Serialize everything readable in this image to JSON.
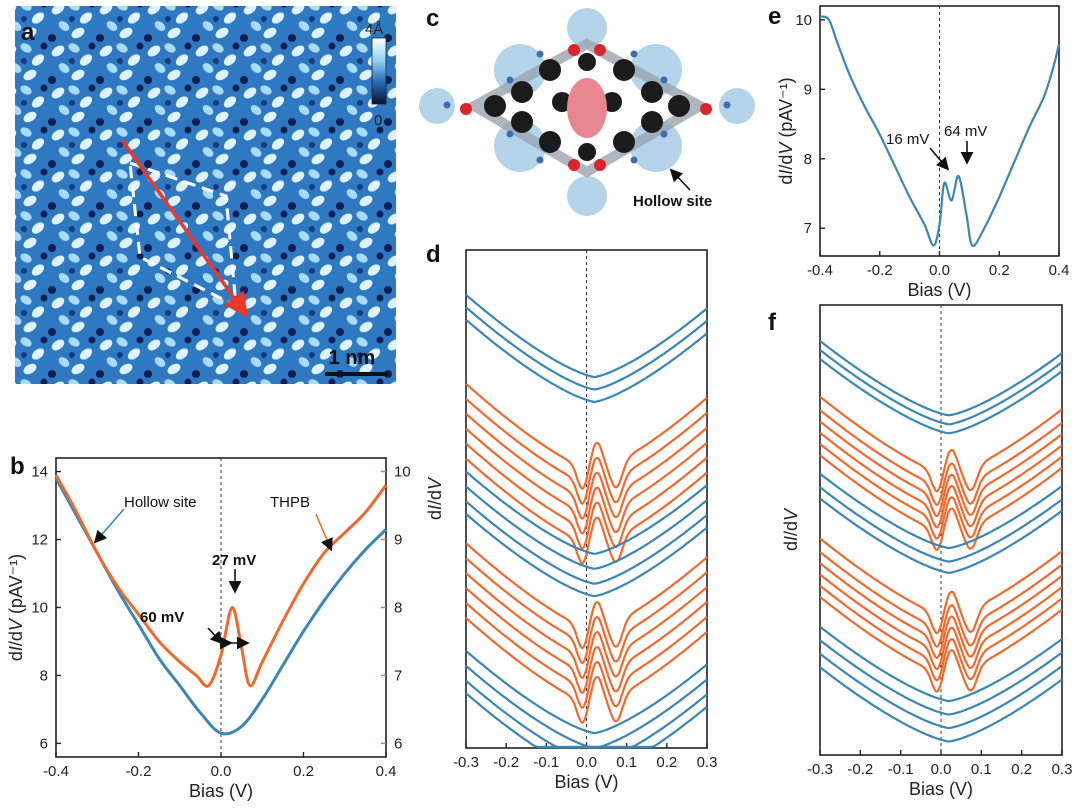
{
  "colors": {
    "hollow": "#3a86b4",
    "thpb": "#ef6a2f",
    "axis": "#222222",
    "stm_dark": "#0b1030",
    "stm_mid": "#2d6fb6",
    "stm_light": "#e4f4ff"
  },
  "panels": {
    "a": "a",
    "b": "b",
    "c": "c",
    "d": "d",
    "e": "e",
    "f": "f"
  },
  "panel_a": {
    "colorbar_max": "4Å",
    "colorbar_min": "0",
    "scale_label": "1 nm"
  },
  "panel_c": {
    "label": "Hollow site"
  },
  "chart_data": [
    {
      "panel": "b",
      "type": "line",
      "xlabel": "Bias (V)",
      "ylabel": "dI/dV (pAV⁻¹)",
      "xlim": [
        -0.4,
        0.4
      ],
      "ylim": [
        5.6,
        14.4
      ],
      "y2lim": [
        5.8,
        10.2
      ],
      "xticks": [
        "-0.4",
        "-0.2",
        "0.0",
        "0.2",
        "0.4"
      ],
      "yticks": [
        "6",
        "8",
        "10",
        "12",
        "14"
      ],
      "y2ticks": [
        "6",
        "7",
        "8",
        "9",
        "10"
      ],
      "series": [
        {
          "name": "Hollow site",
          "axis": "left",
          "x": [
            -0.4,
            -0.35,
            -0.3,
            -0.25,
            -0.2,
            -0.15,
            -0.1,
            -0.05,
            0.0,
            0.05,
            0.1,
            0.15,
            0.2,
            0.25,
            0.3,
            0.35,
            0.4
          ],
          "y": [
            13.8,
            12.7,
            11.6,
            10.5,
            9.5,
            8.5,
            7.7,
            6.9,
            6.3,
            6.5,
            7.3,
            8.3,
            9.3,
            10.2,
            11.0,
            11.7,
            12.3
          ]
        },
        {
          "name": "THPB",
          "axis": "right",
          "x": [
            -0.4,
            -0.35,
            -0.3,
            -0.25,
            -0.2,
            -0.15,
            -0.1,
            -0.06,
            -0.03,
            0.0,
            0.027,
            0.05,
            0.07,
            0.1,
            0.15,
            0.2,
            0.25,
            0.3,
            0.35,
            0.4
          ],
          "y": [
            9.95,
            9.4,
            8.8,
            8.3,
            7.9,
            7.5,
            7.2,
            7.0,
            6.85,
            7.3,
            8.0,
            7.4,
            6.85,
            7.2,
            7.8,
            8.35,
            8.8,
            9.1,
            9.4,
            9.8
          ]
        }
      ],
      "annotations": {
        "legend_hollow": "Hollow site",
        "legend_thpb": "THPB",
        "peak": "27 mV",
        "gap": "60 mV"
      }
    },
    {
      "panel": "d",
      "type": "line",
      "xlabel": "Bias (V)",
      "ylabel": "dI/dV",
      "xlim": [
        -0.3,
        0.3
      ],
      "ylim": [
        0,
        20
      ],
      "xticks": [
        "-0.3",
        "-0.2",
        "-0.1",
        "0.0",
        "0.1",
        "0.2",
        "0.3"
      ],
      "series": [
        {
          "group": "hollow",
          "offsets": [
            18.1,
            17.6,
            17.1
          ]
        },
        {
          "group": "thpb",
          "offsets": [
            14.3,
            13.7,
            13.1,
            12.5,
            11.9,
            11.3
          ]
        },
        {
          "group": "hollow",
          "offsets": [
            11.0,
            10.4,
            9.8,
            9.3
          ]
        },
        {
          "group": "thpb",
          "offsets": [
            7.9,
            7.3,
            6.7,
            6.1,
            5.5,
            4.9
          ]
        },
        {
          "group": "hollow",
          "offsets": [
            3.8,
            3.2,
            2.6,
            2.1
          ]
        }
      ]
    },
    {
      "panel": "e",
      "type": "line",
      "xlabel": "Bias (V)",
      "ylabel": "dI/dV (pAV⁻¹)",
      "xlim": [
        -0.4,
        0.4
      ],
      "ylim": [
        6.6,
        10.2
      ],
      "xticks": [
        "-0.4",
        "-0.2",
        "0.0",
        "0.2",
        "0.4"
      ],
      "yticks": [
        "7",
        "8",
        "9",
        "10"
      ],
      "series": [
        {
          "name": "",
          "x": [
            -0.4,
            -0.37,
            -0.34,
            -0.3,
            -0.25,
            -0.2,
            -0.15,
            -0.1,
            -0.05,
            -0.02,
            0.0,
            0.016,
            0.04,
            0.064,
            0.09,
            0.11,
            0.15,
            0.2,
            0.25,
            0.3,
            0.35,
            0.38,
            0.4
          ],
          "y": [
            10.05,
            10.0,
            9.65,
            9.2,
            8.75,
            8.35,
            7.9,
            7.45,
            7.05,
            6.75,
            7.05,
            7.65,
            7.4,
            7.75,
            7.2,
            6.75,
            7.0,
            7.45,
            7.95,
            8.45,
            8.9,
            9.3,
            9.65
          ]
        }
      ],
      "annotations": {
        "peak1": "16 mV",
        "peak2": "64 mV"
      }
    },
    {
      "panel": "f",
      "type": "line",
      "xlabel": "Bias (V)",
      "ylabel": "dI/dV",
      "xlim": [
        -0.3,
        0.3
      ],
      "ylim": [
        0,
        20
      ],
      "xticks": [
        "-0.3",
        "-0.2",
        "-0.1",
        "0.0",
        "0.1",
        "0.2",
        "0.3"
      ],
      "series": [
        {
          "group": "hollow",
          "offsets": [
            18.3,
            17.9,
            17.5
          ]
        },
        {
          "group": "thpb",
          "offsets": [
            15.6,
            15.0,
            14.5,
            14.0,
            13.5,
            13.0
          ]
        },
        {
          "group": "hollow",
          "offsets": [
            12.4,
            11.8,
            11.3
          ]
        },
        {
          "group": "thpb",
          "offsets": [
            9.3,
            8.7,
            8.2,
            7.7,
            7.2,
            6.7
          ]
        },
        {
          "group": "hollow",
          "offsets": [
            5.6,
            5.0,
            4.4,
            3.8
          ]
        }
      ]
    }
  ]
}
